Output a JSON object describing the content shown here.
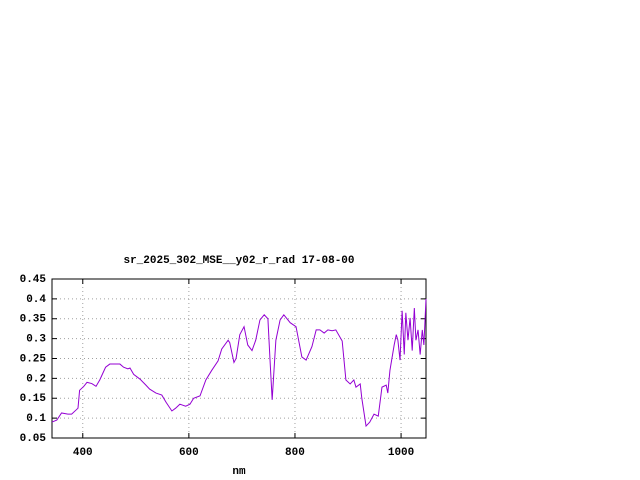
{
  "chart_data": {
    "type": "line",
    "title": "sr_2025_302_MSE__y02_r_rad 17-08-00",
    "x_label": "nm",
    "color": "#9400d3",
    "grid": true,
    "xlim": [
      342,
      1047
    ],
    "ylim": [
      0.05,
      0.45
    ],
    "xticks": [
      400,
      600,
      800,
      1000
    ],
    "yticks": [
      0.05,
      0.1,
      0.15,
      0.2,
      0.25,
      0.3,
      0.35,
      0.4,
      0.45
    ],
    "x": [
      342,
      351,
      360,
      372,
      379,
      387,
      391,
      394,
      402,
      408,
      417,
      425,
      432,
      443,
      451,
      470,
      477,
      485,
      489,
      496,
      508,
      519,
      526,
      538,
      549,
      557,
      568,
      575,
      583,
      594,
      602,
      609,
      621,
      632,
      643,
      655,
      662,
      674,
      677,
      685,
      689,
      696,
      704,
      711,
      719,
      726,
      734,
      742,
      749,
      753,
      757,
      764,
      772,
      779,
      791,
      802,
      813,
      821,
      832,
      840,
      847,
      855,
      862,
      870,
      877,
      889,
      896,
      904,
      911,
      915,
      923,
      926,
      934,
      941,
      949,
      957,
      964,
      972,
      975,
      979,
      987,
      991,
      994,
      998,
      1002,
      1006,
      1009,
      1013,
      1017,
      1021,
      1025,
      1028,
      1032,
      1036,
      1040,
      1043,
      1047
    ],
    "values": [
      0.09,
      0.095,
      0.113,
      0.11,
      0.11,
      0.12,
      0.125,
      0.17,
      0.18,
      0.19,
      0.187,
      0.18,
      0.196,
      0.228,
      0.236,
      0.236,
      0.228,
      0.224,
      0.226,
      0.21,
      0.198,
      0.183,
      0.173,
      0.163,
      0.158,
      0.14,
      0.118,
      0.125,
      0.135,
      0.13,
      0.135,
      0.15,
      0.156,
      0.196,
      0.22,
      0.244,
      0.274,
      0.296,
      0.29,
      0.24,
      0.25,
      0.31,
      0.33,
      0.284,
      0.27,
      0.296,
      0.347,
      0.36,
      0.35,
      0.246,
      0.146,
      0.296,
      0.347,
      0.36,
      0.34,
      0.33,
      0.254,
      0.246,
      0.28,
      0.322,
      0.322,
      0.314,
      0.322,
      0.32,
      0.322,
      0.294,
      0.196,
      0.186,
      0.196,
      0.178,
      0.186,
      0.15,
      0.08,
      0.09,
      0.11,
      0.105,
      0.178,
      0.183,
      0.163,
      0.22,
      0.284,
      0.31,
      0.296,
      0.246,
      0.37,
      0.26,
      0.365,
      0.296,
      0.352,
      0.27,
      0.377,
      0.296,
      0.322,
      0.26,
      0.322,
      0.284,
      0.4
    ]
  }
}
